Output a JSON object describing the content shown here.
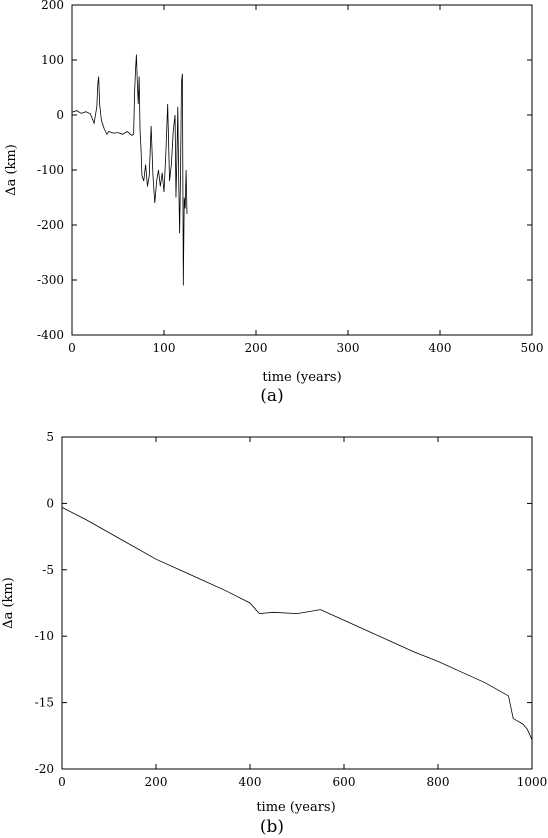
{
  "chart_data": [
    {
      "type": "line",
      "panel_label": "(a)",
      "xlabel": "time (years)",
      "ylabel": "Δa (km)",
      "xlim": [
        0,
        500
      ],
      "ylim": [
        -400,
        200
      ],
      "xticks": [
        "0",
        "100",
        "200",
        "300",
        "400",
        "500"
      ],
      "yticks": [
        "200",
        "100",
        "0",
        "-100",
        "-200",
        "-300",
        "-400"
      ],
      "grid": false,
      "series": [
        {
          "line_color": "#000000",
          "x": [
            0,
            5,
            10,
            15,
            20,
            24,
            27,
            28,
            29,
            30,
            32,
            35,
            38,
            40,
            45,
            50,
            55,
            60,
            65,
            67,
            68,
            69,
            70,
            71,
            72,
            73,
            74,
            75,
            76,
            78,
            80,
            82,
            84,
            86,
            88,
            90,
            92,
            94,
            96,
            98,
            100,
            102,
            104,
            106,
            108,
            110,
            112,
            113,
            114,
            115,
            116,
            117,
            118,
            119,
            120,
            121,
            122,
            123,
            124,
            125
          ],
          "y": [
            5,
            8,
            3,
            6,
            2,
            -15,
            15,
            55,
            70,
            20,
            -10,
            -25,
            -35,
            -30,
            -33,
            -32,
            -35,
            -30,
            -37,
            -35,
            40,
            80,
            110,
            60,
            20,
            70,
            -30,
            -60,
            -110,
            -120,
            -90,
            -130,
            -110,
            -20,
            -110,
            -160,
            -120,
            -100,
            -130,
            -105,
            -140,
            -70,
            20,
            -120,
            -90,
            -30,
            0,
            -150,
            -80,
            15,
            -120,
            -215,
            -100,
            60,
            75,
            -310,
            -150,
            -170,
            -100,
            -180
          ]
        }
      ]
    },
    {
      "type": "line",
      "panel_label": "(b)",
      "xlabel": "time (years)",
      "ylabel": "Δa (km)",
      "xlim": [
        0,
        1000
      ],
      "ylim": [
        -20,
        5
      ],
      "xticks": [
        "0",
        "200",
        "400",
        "600",
        "800",
        "1000"
      ],
      "yticks": [
        "5",
        "0",
        "-5",
        "-10",
        "-15",
        "-20"
      ],
      "grid": false,
      "series": [
        {
          "line_color": "#000000",
          "x": [
            0,
            50,
            100,
            150,
            200,
            250,
            300,
            350,
            400,
            410,
            420,
            450,
            500,
            550,
            600,
            650,
            700,
            750,
            800,
            850,
            900,
            950,
            960,
            970,
            980,
            990,
            1000
          ],
          "y": [
            -0.3,
            -1.2,
            -2.2,
            -3.2,
            -4.2,
            -5.0,
            -5.8,
            -6.6,
            -7.5,
            -7.9,
            -8.3,
            -8.2,
            -8.3,
            -8.0,
            -8.8,
            -9.6,
            -10.4,
            -11.2,
            -11.9,
            -12.7,
            -13.5,
            -14.5,
            -16.2,
            -16.4,
            -16.6,
            -17.0,
            -17.8
          ]
        }
      ]
    }
  ]
}
